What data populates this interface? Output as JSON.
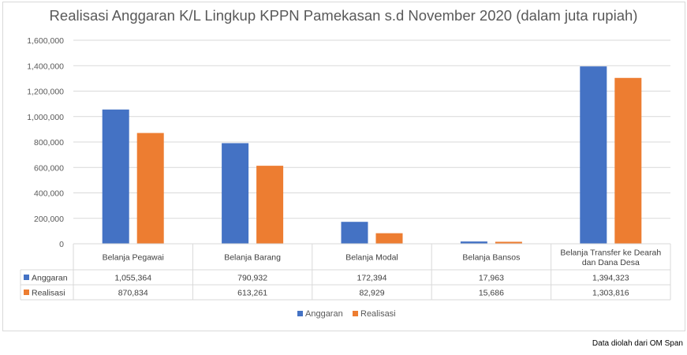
{
  "chart_data": {
    "type": "bar",
    "title": "Realisasi Anggaran K/L Lingkup KPPN Pamekasan s.d November 2020 (dalam juta rupiah)",
    "categories": [
      "Belanja Pegawai",
      "Belanja Barang",
      "Belanja Modal",
      "Belanja Bansos",
      "Belanja Transfer ke Dearah dan Dana Desa"
    ],
    "category_lines": [
      [
        "Belanja Pegawai"
      ],
      [
        "Belanja Barang"
      ],
      [
        "Belanja Modal"
      ],
      [
        "Belanja Bansos"
      ],
      [
        "Belanja Transfer ke Dearah",
        "dan Dana Desa"
      ]
    ],
    "series": [
      {
        "name": "Anggaran",
        "color": "#4472c4",
        "values": [
          1055364,
          790932,
          172394,
          17963,
          1394323
        ],
        "labels": [
          "1,055,364",
          "790,932",
          "172,394",
          "17,963",
          "1,394,323"
        ]
      },
      {
        "name": "Realisasi",
        "color": "#ed7d31",
        "values": [
          870834,
          613261,
          82929,
          15686,
          1303816
        ],
        "labels": [
          "870,834",
          "613,261",
          "82,929",
          "15,686",
          "1,303,816"
        ]
      }
    ],
    "ylim": [
      0,
      1600000
    ],
    "yticks": [
      0,
      200000,
      400000,
      600000,
      800000,
      1000000,
      1200000,
      1400000,
      1600000
    ],
    "ytick_labels": [
      "0",
      "200,000",
      "400,000",
      "600,000",
      "800,000",
      "1,000,000",
      "1,200,000",
      "1,400,000",
      "1,600,000"
    ],
    "grid": true,
    "legend": "bottom",
    "data_table": true
  },
  "source_note": "Data diolah dari OM Span"
}
